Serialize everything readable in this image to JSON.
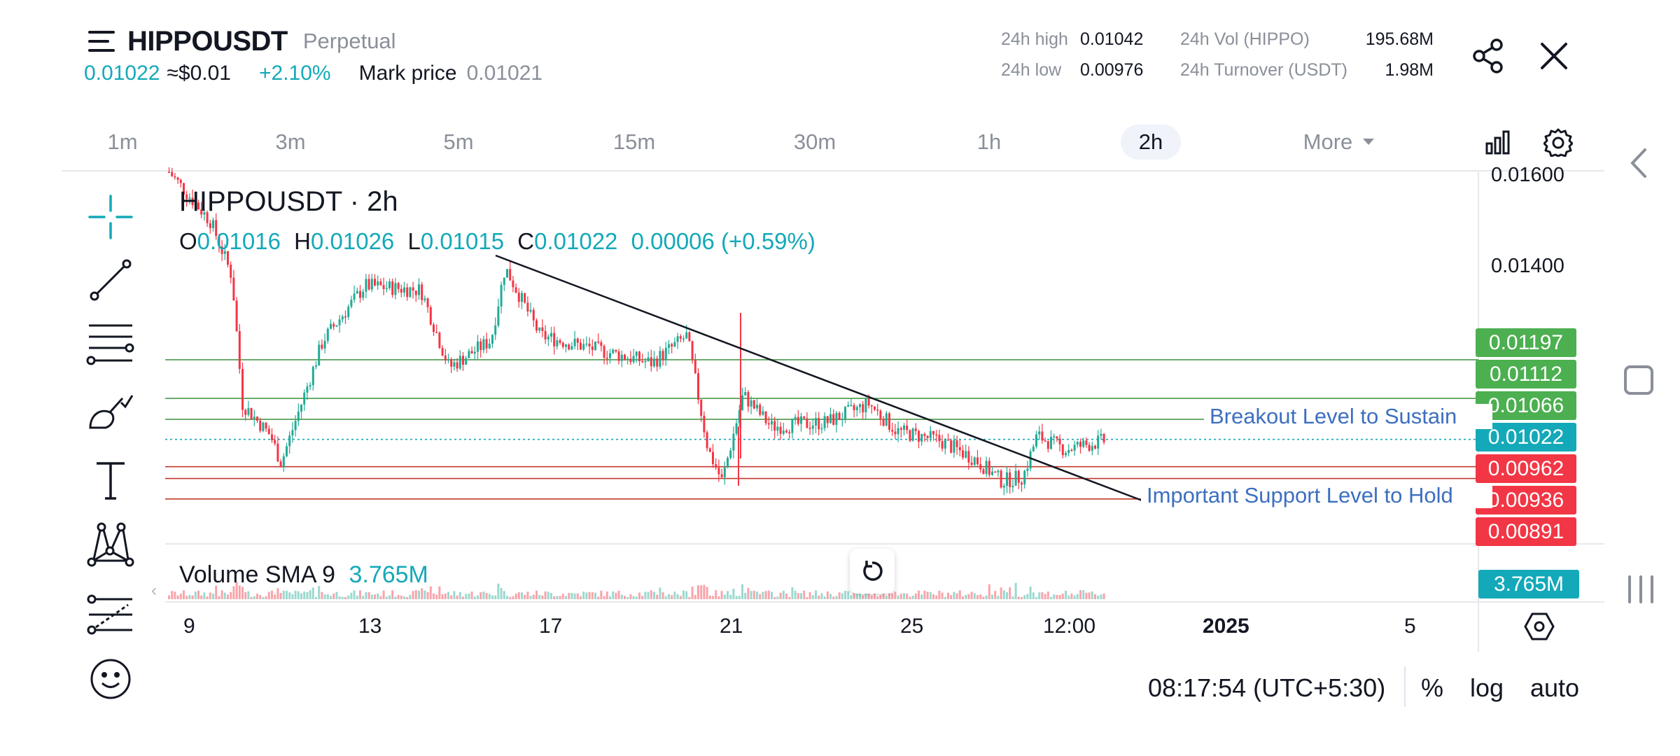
{
  "header": {
    "symbol": "HIPPOUSDT",
    "contract_type": "Perpetual",
    "last_price": "0.01022",
    "usd_price": "≈$0.01",
    "change_pct": "+2.10%",
    "mark_price_label": "Mark price",
    "mark_price": "0.01021",
    "stats": {
      "high_label": "24h high",
      "high": "0.01042",
      "low_label": "24h low",
      "low": "0.00976",
      "vol_label": "24h Vol (HIPPO)",
      "vol": "195.68M",
      "turnover_label": "24h Turnover (USDT)",
      "turnover": "1.98M"
    }
  },
  "timeframes": [
    "1m",
    "3m",
    "5m",
    "15m",
    "30m",
    "1h",
    "2h"
  ],
  "active_timeframe": "2h",
  "more_label": "More",
  "chart": {
    "title": "HIPPOUSDT · 2h",
    "ohlc": {
      "o_label": "O",
      "o": "0.01016",
      "h_label": "H",
      "h": "0.01026",
      "l_label": "L",
      "l": "0.01015",
      "c_label": "C",
      "c": "0.01022",
      "change": "0.00006 (+0.59%)"
    },
    "price_axis": [
      "0.01600",
      "0.01400"
    ],
    "levels": [
      {
        "value": "0.01197",
        "color": "#4caf50"
      },
      {
        "value": "0.01112",
        "color": "#4caf50"
      },
      {
        "value": "0.01066",
        "color": "#4caf50"
      },
      {
        "value": "0.01022",
        "color": "#14a9b9"
      },
      {
        "value": "0.00962",
        "color": "#f23645"
      },
      {
        "value": "0.00936",
        "color": "#f23645"
      },
      {
        "value": "0.00891",
        "color": "#f23645"
      }
    ],
    "annotations": {
      "breakout": "Breakout Level to Sustain",
      "support": "Important Support Level to Hold"
    },
    "volume_label": "Volume SMA 9",
    "volume_value": "3.765M",
    "volume_tag": "3.765M",
    "time_axis": [
      "9",
      "13",
      "17",
      "21",
      "25",
      "12:00",
      "2025",
      "5"
    ]
  },
  "footer": {
    "clock": "08:17:54 (UTC+5:30)",
    "percent_label": "%",
    "log_label": "log",
    "auto_label": "auto"
  },
  "colors": {
    "up": "#22ab94",
    "down": "#f23645",
    "accent": "#14a9b9",
    "support": "#c0392b",
    "resistance": "#4a9a4a",
    "annotation_text": "#3d6fbf"
  },
  "icons": {
    "menu": "hamburger-icon",
    "share": "share-icon",
    "close": "close-icon",
    "indicators": "bar-chart-icon",
    "settings": "gear-icon",
    "crosshair": "crosshair-icon",
    "trendline": "trend-line-icon",
    "fib": "fib-levels-icon",
    "brush": "brush-icon",
    "text": "text-icon",
    "pattern": "pattern-icon",
    "forecast": "forecast-icon",
    "emoji": "emoji-icon",
    "undo": "undo-icon",
    "axis_settings": "axis-settings-icon",
    "nav_back": "back-arrow-icon",
    "nav_home": "home-square-icon",
    "nav_recent": "recents-icon"
  }
}
